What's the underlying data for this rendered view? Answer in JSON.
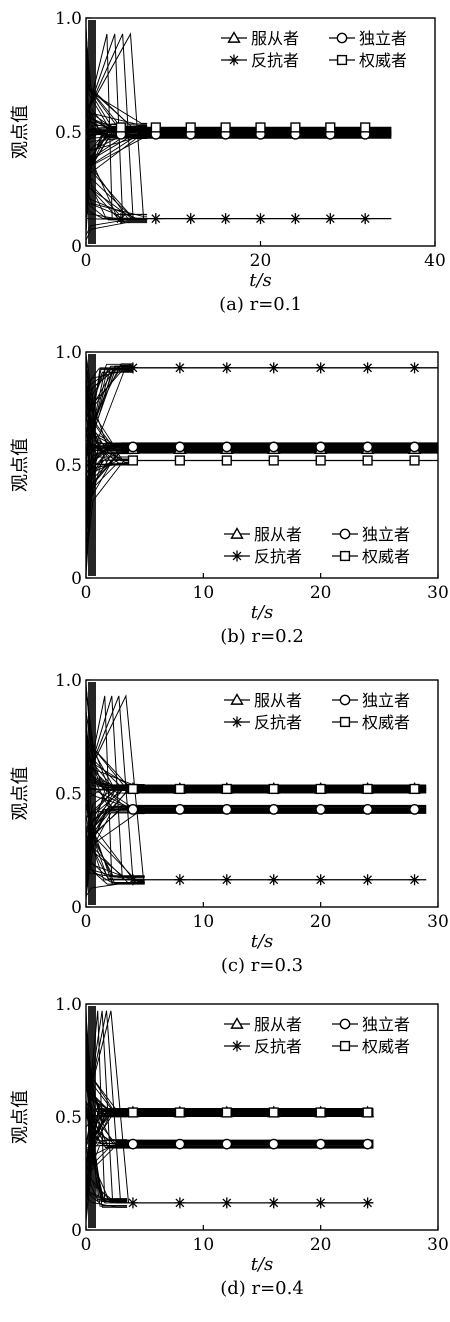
{
  "y_axis_label": "观点值",
  "x_axis_label": "t/s",
  "legend_labels": [
    "服从者",
    "独立者",
    "反抗者",
    "权威者"
  ],
  "chart_data": [
    {
      "type": "line",
      "caption": "(a)  r=0.1",
      "xlim": [
        0,
        40
      ],
      "ylim": [
        0,
        1
      ],
      "x_ticks": [
        "0",
        "20",
        "40"
      ],
      "y_ticks": [
        "0",
        "0.5",
        "1.0"
      ],
      "legend_placement": "top-right",
      "series": [
        {
          "name": "服从者",
          "marker": "triangle",
          "x": [
            4,
            8,
            12,
            16,
            20,
            24,
            28,
            32
          ],
          "values": [
            0.5,
            0.5,
            0.5,
            0.5,
            0.5,
            0.5,
            0.5,
            0.5
          ],
          "x_end": 35
        },
        {
          "name": "独立者",
          "marker": "circle",
          "x": [
            4,
            8,
            12,
            16,
            20,
            24,
            28,
            32
          ],
          "values": [
            0.49,
            0.49,
            0.49,
            0.49,
            0.49,
            0.49,
            0.49,
            0.49
          ],
          "x_end": 35
        },
        {
          "name": "反抗者",
          "marker": "star",
          "x": [
            4,
            8,
            12,
            16,
            20,
            24,
            28,
            32
          ],
          "values": [
            0.12,
            0.12,
            0.12,
            0.12,
            0.12,
            0.12,
            0.12,
            0.12
          ],
          "x_end": 35
        },
        {
          "name": "权威者",
          "marker": "square",
          "x": [
            4,
            8,
            12,
            16,
            20,
            24,
            28,
            32
          ],
          "values": [
            0.52,
            0.52,
            0.52,
            0.52,
            0.52,
            0.52,
            0.52,
            0.52
          ],
          "x_end": 35
        }
      ],
      "transient_peak": 0.93,
      "settle_x": 6
    },
    {
      "type": "line",
      "caption": "(b)  r=0.2",
      "xlim": [
        0,
        30
      ],
      "ylim": [
        0,
        1
      ],
      "x_ticks": [
        "0",
        "10",
        "20",
        "30"
      ],
      "y_ticks": [
        "0",
        "0.5",
        "1.0"
      ],
      "legend_placement": "bottom-right",
      "series": [
        {
          "name": "服从者",
          "marker": "triangle",
          "x": [
            4,
            8,
            12,
            16,
            20,
            24,
            28
          ],
          "values": [
            0.57,
            0.57,
            0.57,
            0.57,
            0.57,
            0.57,
            0.57
          ],
          "x_end": 30
        },
        {
          "name": "独立者",
          "marker": "circle",
          "x": [
            4,
            8,
            12,
            16,
            20,
            24,
            28
          ],
          "values": [
            0.58,
            0.58,
            0.58,
            0.58,
            0.58,
            0.58,
            0.58
          ],
          "x_end": 30
        },
        {
          "name": "反抗者",
          "marker": "star",
          "x": [
            4,
            8,
            12,
            16,
            20,
            24,
            28
          ],
          "values": [
            0.93,
            0.93,
            0.93,
            0.93,
            0.93,
            0.93,
            0.93
          ],
          "x_end": 30
        },
        {
          "name": "权威者",
          "marker": "square",
          "x": [
            4,
            8,
            12,
            16,
            20,
            24,
            28
          ],
          "values": [
            0.52,
            0.52,
            0.52,
            0.52,
            0.52,
            0.52,
            0.52
          ],
          "x_end": 30
        }
      ],
      "transient_peak": 0.93,
      "settle_x": 3
    },
    {
      "type": "line",
      "caption": "(c)  r=0.3",
      "xlim": [
        0,
        30
      ],
      "ylim": [
        0,
        1
      ],
      "x_ticks": [
        "0",
        "10",
        "20",
        "30"
      ],
      "y_ticks": [
        "0",
        "0.5",
        "1.0"
      ],
      "legend_placement": "top-right",
      "series": [
        {
          "name": "服从者",
          "marker": "triangle",
          "x": [
            4,
            8,
            12,
            16,
            20,
            24,
            28
          ],
          "values": [
            0.52,
            0.52,
            0.52,
            0.52,
            0.52,
            0.52,
            0.52
          ],
          "x_end": 29
        },
        {
          "name": "独立者",
          "marker": "circle",
          "x": [
            4,
            8,
            12,
            16,
            20,
            24,
            28
          ],
          "values": [
            0.43,
            0.43,
            0.43,
            0.43,
            0.43,
            0.43,
            0.43
          ],
          "x_end": 29
        },
        {
          "name": "反抗者",
          "marker": "star",
          "x": [
            4,
            8,
            12,
            16,
            20,
            24,
            28
          ],
          "values": [
            0.12,
            0.12,
            0.12,
            0.12,
            0.12,
            0.12,
            0.12
          ],
          "x_end": 29
        },
        {
          "name": "权威者",
          "marker": "square",
          "x": [
            4,
            8,
            12,
            16,
            20,
            24,
            28
          ],
          "values": [
            0.52,
            0.52,
            0.52,
            0.52,
            0.52,
            0.52,
            0.52
          ],
          "x_end": 29
        }
      ],
      "transient_peak": 0.93,
      "settle_x": 4
    },
    {
      "type": "line",
      "caption": "(d)  r=0.4",
      "xlim": [
        0,
        30
      ],
      "ylim": [
        0,
        1
      ],
      "x_ticks": [
        "0",
        "10",
        "20",
        "30"
      ],
      "y_ticks": [
        "0",
        "0.5",
        "1.0"
      ],
      "legend_placement": "top-right",
      "series": [
        {
          "name": "服从者",
          "marker": "triangle",
          "x": [
            4,
            8,
            12,
            16,
            20,
            24
          ],
          "values": [
            0.52,
            0.52,
            0.52,
            0.52,
            0.52,
            0.52
          ],
          "x_end": 24.5
        },
        {
          "name": "独立者",
          "marker": "circle",
          "x": [
            4,
            8,
            12,
            16,
            20,
            24
          ],
          "values": [
            0.38,
            0.38,
            0.38,
            0.38,
            0.38,
            0.38
          ],
          "x_end": 24.5
        },
        {
          "name": "反抗者",
          "marker": "star",
          "x": [
            4,
            8,
            12,
            16,
            20,
            24
          ],
          "values": [
            0.12,
            0.12,
            0.12,
            0.12,
            0.12,
            0.12
          ],
          "x_end": 24.5
        },
        {
          "name": "权威者",
          "marker": "square",
          "x": [
            4,
            8,
            12,
            16,
            20,
            24
          ],
          "values": [
            0.52,
            0.52,
            0.52,
            0.52,
            0.52,
            0.52
          ],
          "x_end": 24.5
        }
      ],
      "transient_peak": 0.97,
      "settle_x": 2.5
    }
  ]
}
